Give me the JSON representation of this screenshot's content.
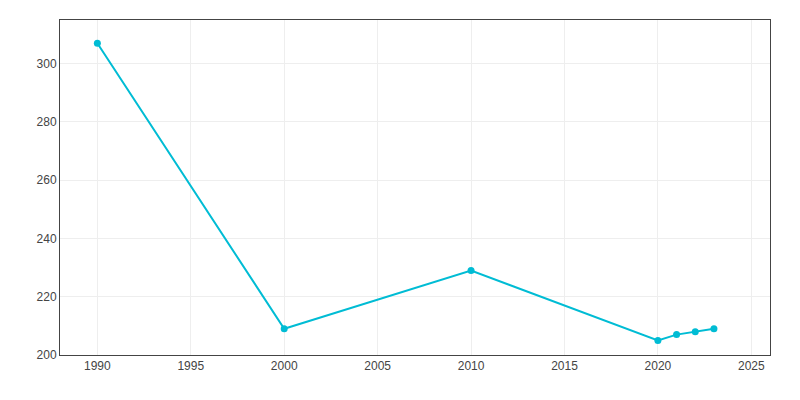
{
  "chart_data": {
    "type": "line",
    "x": [
      1990,
      2000,
      2010,
      2020,
      2021,
      2022,
      2023
    ],
    "values": [
      307,
      209,
      229,
      205,
      207,
      208,
      209
    ],
    "color": "#00BCD4",
    "marker": "circle",
    "xlim": [
      1988,
      2026
    ],
    "ylim": [
      200,
      315
    ],
    "xticks": [
      1990,
      1995,
      2000,
      2005,
      2010,
      2015,
      2020,
      2025
    ],
    "yticks": [
      200,
      220,
      240,
      260,
      280,
      300
    ],
    "grid": true
  }
}
